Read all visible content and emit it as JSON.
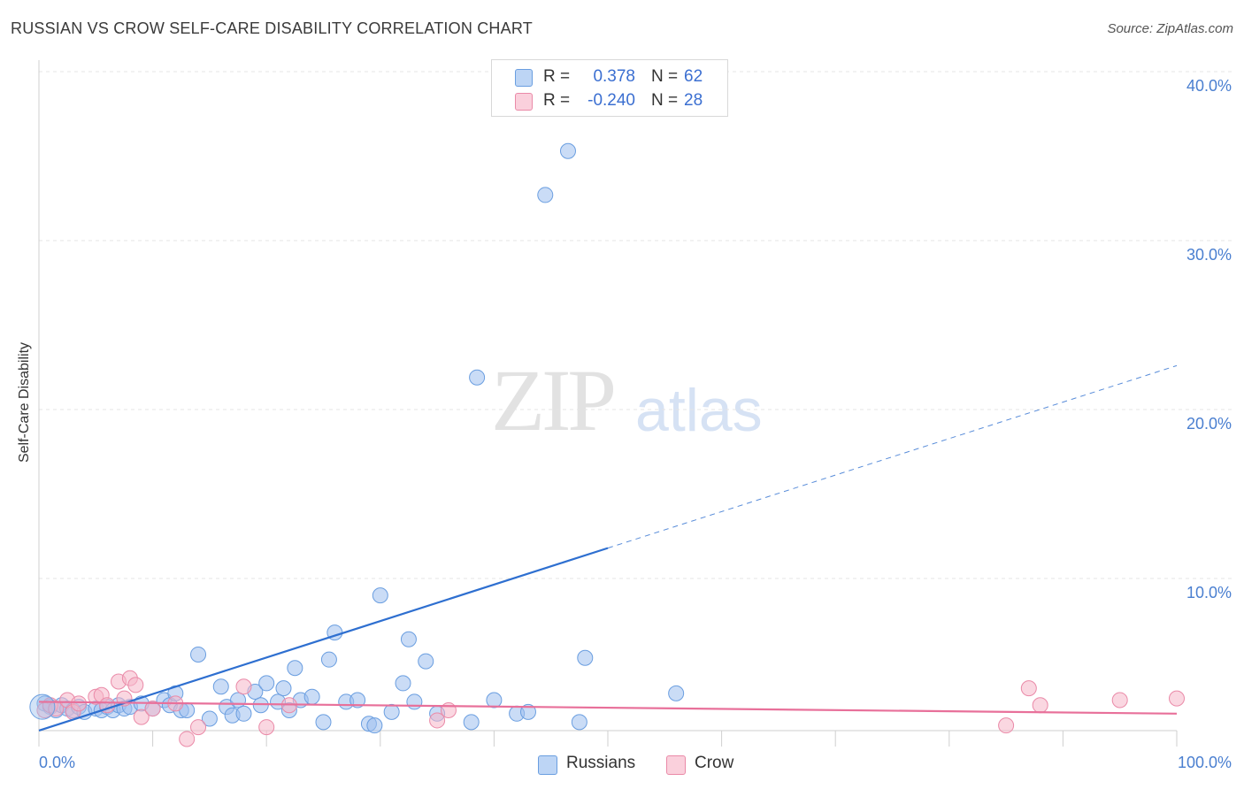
{
  "title": "RUSSIAN VS CROW SELF-CARE DISABILITY CORRELATION CHART",
  "source": "Source: ZipAtlas.com",
  "watermark": {
    "part1": "ZIP",
    "part2": "atlas"
  },
  "legend": {
    "rows": [
      {
        "r_label": "R =",
        "r_value": "0.378",
        "n_label": "N =",
        "n_value": "62",
        "color": "#9ec0ee",
        "edge": "#6a9ee0"
      },
      {
        "r_label": "R =",
        "r_value": "-0.240",
        "n_label": "N =",
        "n_value": "28",
        "color": "#f6b7c8",
        "edge": "#ea8aa8"
      }
    ]
  },
  "chart_data": {
    "type": "scatter",
    "title": "RUSSIAN VS CROW SELF-CARE DISABILITY CORRELATION CHART",
    "xlabel": "",
    "ylabel": "Self-Care Disability",
    "xlim": [
      0,
      100
    ],
    "ylim": [
      0,
      42
    ],
    "y_ticks": [
      10,
      20,
      30,
      40
    ],
    "y_tick_labels": [
      "10.0%",
      "20.0%",
      "30.0%",
      "40.0%"
    ],
    "x_tick_labels": [
      "0.0%",
      "100.0%"
    ],
    "grid": true,
    "series": [
      {
        "name": "Russians",
        "color": "#9ec0ee",
        "edge": "#6a9ee0",
        "line_color": "#2e6fd0",
        "trend": {
          "x0": 0,
          "y0": 1.0,
          "x1": 50,
          "y1": 11.8,
          "x_ext": 100,
          "y_ext": 22.6
        },
        "points": [
          [
            0.5,
            2.6
          ],
          [
            1.0,
            2.4
          ],
          [
            1.5,
            2.2
          ],
          [
            2.0,
            2.5
          ],
          [
            2.5,
            2.3
          ],
          [
            3.0,
            2.2
          ],
          [
            3.5,
            2.4
          ],
          [
            4.0,
            2.1
          ],
          [
            5.0,
            2.3
          ],
          [
            5.5,
            2.2
          ],
          [
            6.0,
            2.4
          ],
          [
            6.5,
            2.2
          ],
          [
            7.0,
            2.5
          ],
          [
            7.5,
            2.3
          ],
          [
            8.0,
            2.4
          ],
          [
            9.0,
            2.6
          ],
          [
            10.0,
            2.3
          ],
          [
            11.0,
            2.8
          ],
          [
            11.5,
            2.5
          ],
          [
            12.0,
            3.2
          ],
          [
            12.5,
            2.2
          ],
          [
            13.0,
            2.2
          ],
          [
            14.0,
            5.5
          ],
          [
            15.0,
            1.7
          ],
          [
            16.0,
            3.6
          ],
          [
            16.5,
            2.4
          ],
          [
            17.0,
            1.9
          ],
          [
            17.5,
            2.8
          ],
          [
            18.0,
            2.0
          ],
          [
            19.0,
            3.3
          ],
          [
            19.5,
            2.5
          ],
          [
            20.0,
            3.8
          ],
          [
            21.0,
            2.7
          ],
          [
            21.5,
            3.5
          ],
          [
            22.0,
            2.2
          ],
          [
            22.5,
            4.7
          ],
          [
            23.0,
            2.8
          ],
          [
            24.0,
            3.0
          ],
          [
            25.0,
            1.5
          ],
          [
            25.5,
            5.2
          ],
          [
            26.0,
            6.8
          ],
          [
            27.0,
            2.7
          ],
          [
            28.0,
            2.8
          ],
          [
            29.0,
            1.4
          ],
          [
            29.5,
            1.3
          ],
          [
            30.0,
            9.0
          ],
          [
            31.0,
            2.1
          ],
          [
            32.0,
            3.8
          ],
          [
            32.5,
            6.4
          ],
          [
            33.0,
            2.7
          ],
          [
            34.0,
            5.1
          ],
          [
            35.0,
            2.0
          ],
          [
            38.0,
            1.5
          ],
          [
            40.0,
            2.8
          ],
          [
            42.0,
            2.0
          ],
          [
            43.0,
            2.1
          ],
          [
            44.5,
            32.7
          ],
          [
            46.5,
            35.3
          ],
          [
            47.5,
            1.5
          ],
          [
            48.0,
            5.3
          ],
          [
            38.5,
            21.9
          ],
          [
            56.0,
            3.2
          ]
        ]
      },
      {
        "name": "Crow",
        "color": "#f6b7c8",
        "edge": "#ea8aa8",
        "line_color": "#e8709a",
        "trend": {
          "x0": 0,
          "y0": 2.7,
          "x1": 100,
          "y1": 2.0
        },
        "points": [
          [
            0.5,
            2.2
          ],
          [
            1.0,
            2.5
          ],
          [
            1.5,
            2.3
          ],
          [
            2.5,
            2.8
          ],
          [
            3.0,
            2.1
          ],
          [
            3.5,
            2.6
          ],
          [
            5.0,
            3.0
          ],
          [
            5.5,
            3.1
          ],
          [
            6.0,
            2.5
          ],
          [
            7.0,
            3.9
          ],
          [
            7.5,
            2.9
          ],
          [
            8.0,
            4.1
          ],
          [
            8.5,
            3.7
          ],
          [
            9.0,
            1.8
          ],
          [
            10.0,
            2.3
          ],
          [
            12.0,
            2.6
          ],
          [
            13.0,
            0.5
          ],
          [
            14.0,
            1.2
          ],
          [
            18.0,
            3.6
          ],
          [
            20.0,
            1.2
          ],
          [
            22.0,
            2.5
          ],
          [
            35.0,
            1.6
          ],
          [
            36.0,
            2.2
          ],
          [
            85.0,
            1.3
          ],
          [
            95.0,
            2.8
          ],
          [
            100.0,
            2.9
          ],
          [
            87.0,
            3.5
          ],
          [
            88.0,
            2.5
          ]
        ]
      }
    ]
  },
  "bottom_legend": [
    {
      "label": "Russians",
      "color": "#9ec0ee",
      "edge": "#6a9ee0"
    },
    {
      "label": "Crow",
      "color": "#f6b7c8",
      "edge": "#ea8aa8"
    }
  ]
}
